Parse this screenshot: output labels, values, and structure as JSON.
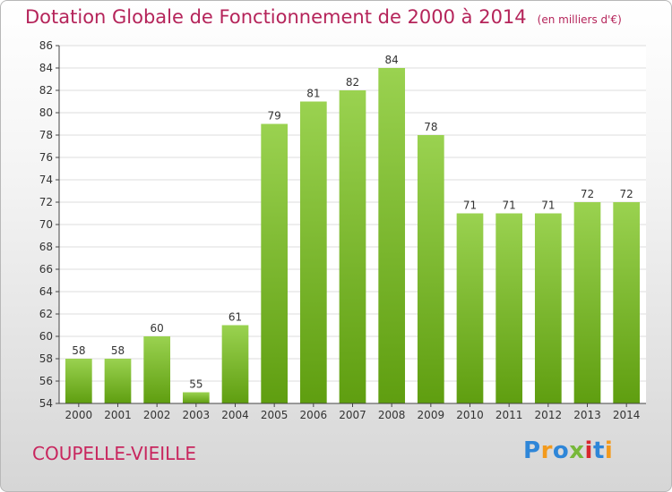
{
  "chart_data": {
    "type": "bar",
    "title": "Dotation Globale de Fonctionnement de 2000 à 2014",
    "subtitle": "(en milliers d'€)",
    "categories": [
      "2000",
      "2001",
      "2002",
      "2003",
      "2004",
      "2005",
      "2006",
      "2007",
      "2008",
      "2009",
      "2010",
      "2011",
      "2012",
      "2013",
      "2014"
    ],
    "values": [
      58,
      58,
      60,
      55,
      61,
      79,
      81,
      82,
      84,
      78,
      71,
      71,
      71,
      72,
      72
    ],
    "ylim": [
      54,
      86
    ],
    "yticks": [
      54,
      56,
      58,
      60,
      62,
      64,
      66,
      68,
      70,
      72,
      74,
      76,
      78,
      80,
      82,
      84,
      86
    ],
    "grid": true,
    "legend": "none",
    "colors": {
      "bar_top": "#9ad250",
      "bar_bottom": "#5f9e10",
      "grid": "#dcdcdc",
      "title": "#b5245a"
    }
  },
  "footer": {
    "commune": "COUPELLE-VIEILLE"
  },
  "logo": {
    "text": "Proxiti",
    "letter_colors": [
      "#2e86d8",
      "#f39a1c",
      "#2e86d8",
      "#77b83a",
      "#d8262e",
      "#2e86d8",
      "#f39a1c"
    ]
  }
}
